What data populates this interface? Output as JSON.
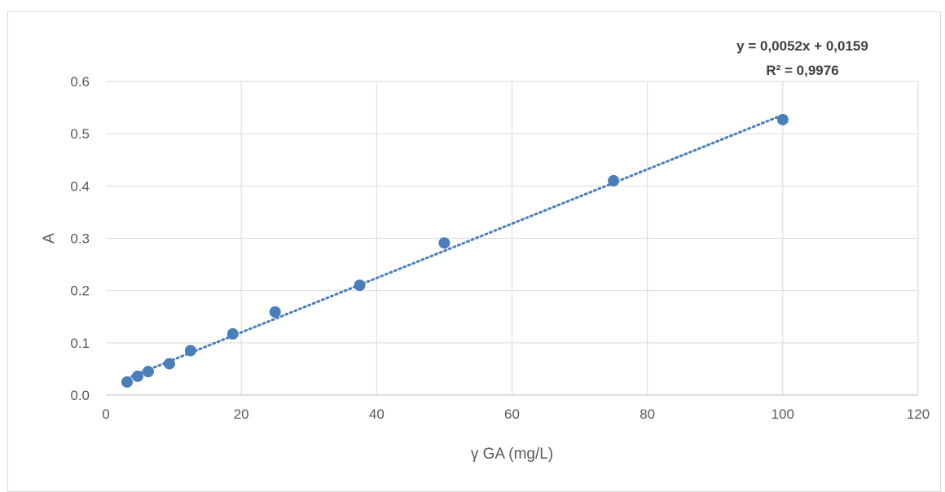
{
  "chart_data": {
    "type": "scatter",
    "xlabel": "γ GA (mg/L)",
    "ylabel": "A",
    "xlim": [
      0,
      120
    ],
    "ylim": [
      0,
      0.6
    ],
    "x_ticks": [
      "0",
      "20",
      "40",
      "60",
      "80",
      "100",
      "120"
    ],
    "y_ticks": [
      "0.0",
      "0.1",
      "0.2",
      "0.3",
      "0.4",
      "0.5",
      "0.6"
    ],
    "grid": true,
    "legend": "none",
    "series": [
      {
        "color": "#4a7ebb",
        "x": [
          3.125,
          4.69,
          6.25,
          9.375,
          12.5,
          18.75,
          25,
          37.5,
          50,
          75,
          100
        ],
        "y": [
          0.025,
          0.036,
          0.045,
          0.06,
          0.085,
          0.117,
          0.159,
          0.21,
          0.291,
          0.41,
          0.527
        ]
      }
    ],
    "trendline": {
      "type": "linear",
      "slope": 0.0052,
      "intercept": 0.0159,
      "x_range": [
        3.125,
        100
      ],
      "color": "#4a7ebb",
      "style": "dotted"
    },
    "annotations": [
      "y = 0,0052x + 0,0159",
      "R² = 0,9976"
    ]
  }
}
